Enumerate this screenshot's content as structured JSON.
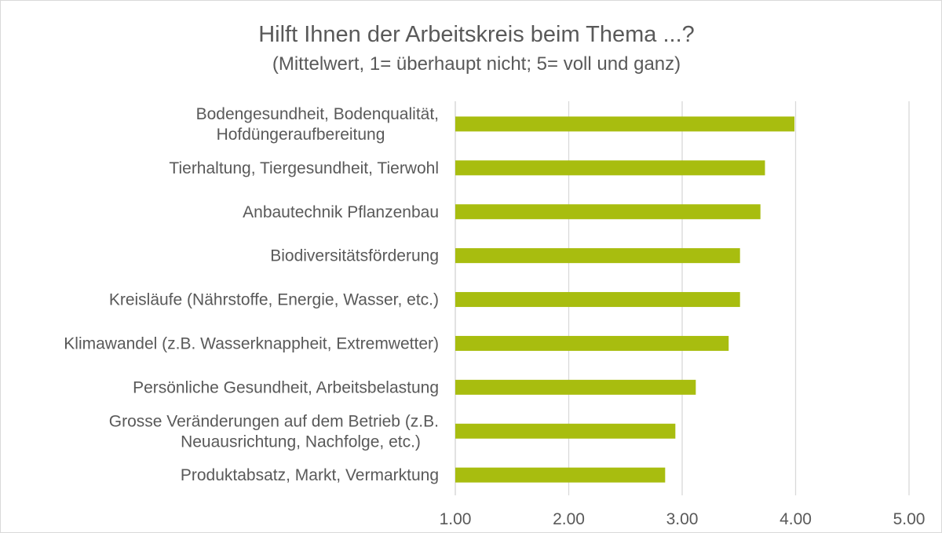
{
  "chart_data": {
    "type": "bar",
    "orientation": "horizontal",
    "title": "Hilft Ihnen der Arbeitskreis beim Thema ...?",
    "subtitle": "(Mittelwert, 1= überhaupt nicht; 5= voll und ganz)",
    "xlabel": "",
    "ylabel": "",
    "xlim": [
      1,
      5
    ],
    "x_ticks": [
      "1.00",
      "2.00",
      "3.00",
      "4.00",
      "5.00"
    ],
    "x_tick_values": [
      1,
      2,
      3,
      4,
      5
    ],
    "grid": true,
    "legend": false,
    "bar_color": "#a8bd0f",
    "categories": [
      [
        "Bodengesundheit, Bodenqualität,",
        "Hofdüngeraufbereitung"
      ],
      [
        "Tierhaltung, Tiergesundheit, Tierwohl"
      ],
      [
        "Anbautechnik Pflanzenbau"
      ],
      [
        "Biodiversitätsförderung"
      ],
      [
        "Kreisläufe (Nährstoffe, Energie, Wasser, etc.)"
      ],
      [
        "Klimawandel (z.B. Wasserknappheit, Extremwetter)"
      ],
      [
        "Persönliche Gesundheit, Arbeitsbelastung"
      ],
      [
        "Grosse Veränderungen auf dem Betrieb (z.B.",
        "Neuausrichtung, Nachfolge, etc.)"
      ],
      [
        "Produktabsatz, Markt, Vermarktung"
      ]
    ],
    "values": [
      3.99,
      3.73,
      3.69,
      3.51,
      3.51,
      3.41,
      3.12,
      2.94,
      2.85
    ]
  }
}
